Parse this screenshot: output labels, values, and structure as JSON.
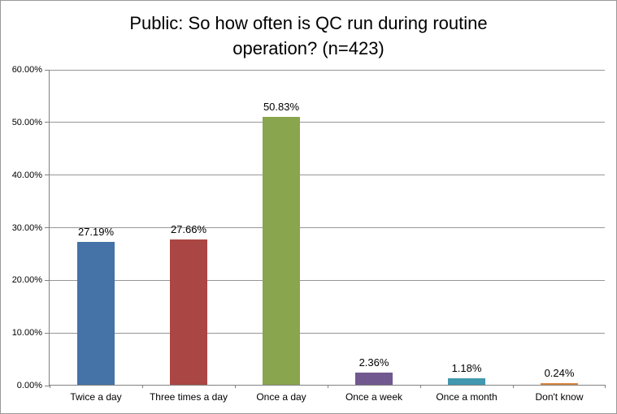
{
  "chart_data": {
    "type": "bar",
    "title": "Public: So how often is QC run during routine operation? (n=423)",
    "categories": [
      "Twice a day",
      "Three times a day",
      "Once a day",
      "Once a week",
      "Once a month",
      "Don't know"
    ],
    "values": [
      27.19,
      27.66,
      50.83,
      2.36,
      1.18,
      0.24
    ],
    "data_labels": [
      "27.19%",
      "27.66%",
      "50.83%",
      "2.36%",
      "1.18%",
      "0.24%"
    ],
    "bar_colors": [
      "#4572A7",
      "#AA4643",
      "#89A54E",
      "#71588F",
      "#4198AF",
      "#DB843D"
    ],
    "xlabel": "",
    "ylabel": "",
    "ylim": [
      0,
      60
    ],
    "ytick_step": 10,
    "ytick_labels": [
      "0.00%",
      "10.00%",
      "20.00%",
      "30.00%",
      "40.00%",
      "50.00%",
      "60.00%"
    ],
    "grid": true,
    "legend_position": "none",
    "gridline_color": "#969696",
    "axis_color": "#808080",
    "background_color": "#FFFFFF",
    "border_color": "#999999"
  }
}
